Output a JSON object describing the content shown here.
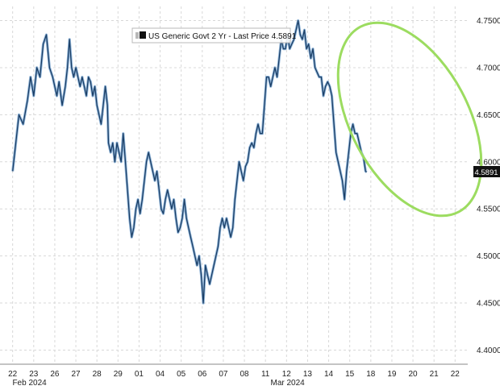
{
  "chart_data": {
    "type": "line",
    "legend": {
      "label": "US Generic Govt 2 Yr - Last Price 4.5891",
      "placement": "top-center"
    },
    "last_price_label": "4.5891",
    "ylim": [
      4.385,
      4.765
    ],
    "y_ticks": [
      "4.4000",
      "4.4500",
      "4.5000",
      "4.5500",
      "4.6000",
      "4.6500",
      "4.7000",
      "4.7500"
    ],
    "x_ticks": [
      "22",
      "23",
      "26",
      "27",
      "28",
      "29",
      "01",
      "04",
      "05",
      "06",
      "07",
      "08",
      "11",
      "12",
      "13",
      "14",
      "15",
      "18",
      "19",
      "20",
      "21",
      "22"
    ],
    "month_labels": [
      "Feb 2024",
      "Mar 2024"
    ],
    "grid": true,
    "colors": {
      "line": "#1c3f66",
      "line_highlight": "#8fb4d8",
      "ellipse": "#9cdc60",
      "last_price_box": "#111111"
    },
    "annotation": {
      "shape": "ellipse",
      "color": "green",
      "around": "Mar 15 to Mar 22 decline"
    },
    "series": [
      {
        "values": [
          [
            0.0,
            4.59
          ],
          [
            0.15,
            4.62
          ],
          [
            0.3,
            4.65
          ],
          [
            0.5,
            4.64
          ],
          [
            0.7,
            4.665
          ],
          [
            0.85,
            4.69
          ],
          [
            1.0,
            4.67
          ],
          [
            1.15,
            4.7
          ],
          [
            1.3,
            4.69
          ],
          [
            1.45,
            4.725
          ],
          [
            1.6,
            4.735
          ],
          [
            1.75,
            4.7
          ],
          [
            1.9,
            4.69
          ],
          [
            2.0,
            4.68
          ],
          [
            2.1,
            4.67
          ],
          [
            2.2,
            4.685
          ],
          [
            2.35,
            4.66
          ],
          [
            2.5,
            4.68
          ],
          [
            2.6,
            4.7
          ],
          [
            2.7,
            4.73
          ],
          [
            2.8,
            4.7
          ],
          [
            2.9,
            4.69
          ],
          [
            3.0,
            4.7
          ],
          [
            3.1,
            4.69
          ],
          [
            3.2,
            4.68
          ],
          [
            3.3,
            4.69
          ],
          [
            3.4,
            4.68
          ],
          [
            3.5,
            4.67
          ],
          [
            3.6,
            4.69
          ],
          [
            3.7,
            4.685
          ],
          [
            3.8,
            4.67
          ],
          [
            3.9,
            4.68
          ],
          [
            4.0,
            4.66
          ],
          [
            4.1,
            4.65
          ],
          [
            4.2,
            4.64
          ],
          [
            4.3,
            4.66
          ],
          [
            4.4,
            4.68
          ],
          [
            4.5,
            4.66
          ],
          [
            4.55,
            4.62
          ],
          [
            4.65,
            4.61
          ],
          [
            4.75,
            4.62
          ],
          [
            4.85,
            4.6
          ],
          [
            4.95,
            4.62
          ],
          [
            5.05,
            4.61
          ],
          [
            5.15,
            4.6
          ],
          [
            5.25,
            4.63
          ],
          [
            5.35,
            4.6
          ],
          [
            5.45,
            4.57
          ],
          [
            5.55,
            4.54
          ],
          [
            5.65,
            4.52
          ],
          [
            5.75,
            4.53
          ],
          [
            5.85,
            4.55
          ],
          [
            5.95,
            4.56
          ],
          [
            6.05,
            4.545
          ],
          [
            6.15,
            4.56
          ],
          [
            6.25,
            4.58
          ],
          [
            6.35,
            4.6
          ],
          [
            6.45,
            4.61
          ],
          [
            6.55,
            4.6
          ],
          [
            6.65,
            4.59
          ],
          [
            6.75,
            4.58
          ],
          [
            6.85,
            4.59
          ],
          [
            6.95,
            4.57
          ],
          [
            7.05,
            4.55
          ],
          [
            7.15,
            4.545
          ],
          [
            7.25,
            4.56
          ],
          [
            7.35,
            4.57
          ],
          [
            7.45,
            4.56
          ],
          [
            7.55,
            4.55
          ],
          [
            7.65,
            4.56
          ],
          [
            7.75,
            4.54
          ],
          [
            7.85,
            4.525
          ],
          [
            7.95,
            4.53
          ],
          [
            8.05,
            4.54
          ],
          [
            8.15,
            4.56
          ],
          [
            8.25,
            4.54
          ],
          [
            8.35,
            4.53
          ],
          [
            8.45,
            4.52
          ],
          [
            8.55,
            4.51
          ],
          [
            8.65,
            4.5
          ],
          [
            8.75,
            4.49
          ],
          [
            8.85,
            4.5
          ],
          [
            8.95,
            4.48
          ],
          [
            9.05,
            4.45
          ],
          [
            9.15,
            4.49
          ],
          [
            9.25,
            4.48
          ],
          [
            9.35,
            4.47
          ],
          [
            9.45,
            4.48
          ],
          [
            9.55,
            4.49
          ],
          [
            9.65,
            4.5
          ],
          [
            9.75,
            4.51
          ],
          [
            9.85,
            4.53
          ],
          [
            9.95,
            4.54
          ],
          [
            10.05,
            4.53
          ],
          [
            10.15,
            4.54
          ],
          [
            10.25,
            4.53
          ],
          [
            10.35,
            4.52
          ],
          [
            10.45,
            4.53
          ],
          [
            10.55,
            4.56
          ],
          [
            10.65,
            4.58
          ],
          [
            10.75,
            4.6
          ],
          [
            10.85,
            4.59
          ],
          [
            10.95,
            4.58
          ],
          [
            11.05,
            4.595
          ],
          [
            11.15,
            4.6
          ],
          [
            11.25,
            4.615
          ],
          [
            11.35,
            4.62
          ],
          [
            11.45,
            4.615
          ],
          [
            11.55,
            4.63
          ],
          [
            11.65,
            4.64
          ],
          [
            11.75,
            4.63
          ],
          [
            11.85,
            4.63
          ],
          [
            11.95,
            4.66
          ],
          [
            12.05,
            4.69
          ],
          [
            12.15,
            4.69
          ],
          [
            12.25,
            4.68
          ],
          [
            12.35,
            4.69
          ],
          [
            12.45,
            4.7
          ],
          [
            12.55,
            4.69
          ],
          [
            12.65,
            4.71
          ],
          [
            12.75,
            4.73
          ],
          [
            12.85,
            4.72
          ],
          [
            12.95,
            4.72
          ],
          [
            13.05,
            4.735
          ],
          [
            13.15,
            4.72
          ],
          [
            13.25,
            4.725
          ],
          [
            13.35,
            4.73
          ],
          [
            13.45,
            4.74
          ],
          [
            13.55,
            4.75
          ],
          [
            13.65,
            4.735
          ],
          [
            13.75,
            4.73
          ],
          [
            13.85,
            4.74
          ],
          [
            13.95,
            4.72
          ],
          [
            14.05,
            4.725
          ],
          [
            14.15,
            4.71
          ],
          [
            14.25,
            4.72
          ],
          [
            14.35,
            4.7
          ],
          [
            14.45,
            4.695
          ],
          [
            14.55,
            4.69
          ],
          [
            14.65,
            4.69
          ],
          [
            14.75,
            4.67
          ],
          [
            14.85,
            4.68
          ],
          [
            14.95,
            4.685
          ],
          [
            15.05,
            4.68
          ],
          [
            15.15,
            4.67
          ],
          [
            15.25,
            4.64
          ],
          [
            15.35,
            4.61
          ],
          [
            15.45,
            4.6
          ],
          [
            15.55,
            4.59
          ],
          [
            15.65,
            4.58
          ],
          [
            15.75,
            4.56
          ],
          [
            15.85,
            4.59
          ],
          [
            15.95,
            4.61
          ],
          [
            16.05,
            4.63
          ],
          [
            16.15,
            4.64
          ],
          [
            16.25,
            4.63
          ],
          [
            16.35,
            4.63
          ],
          [
            16.45,
            4.62
          ],
          [
            16.55,
            4.61
          ],
          [
            16.65,
            4.605
          ],
          [
            16.75,
            4.59
          ],
          [
            16.8,
            4.589
          ]
        ]
      }
    ]
  }
}
